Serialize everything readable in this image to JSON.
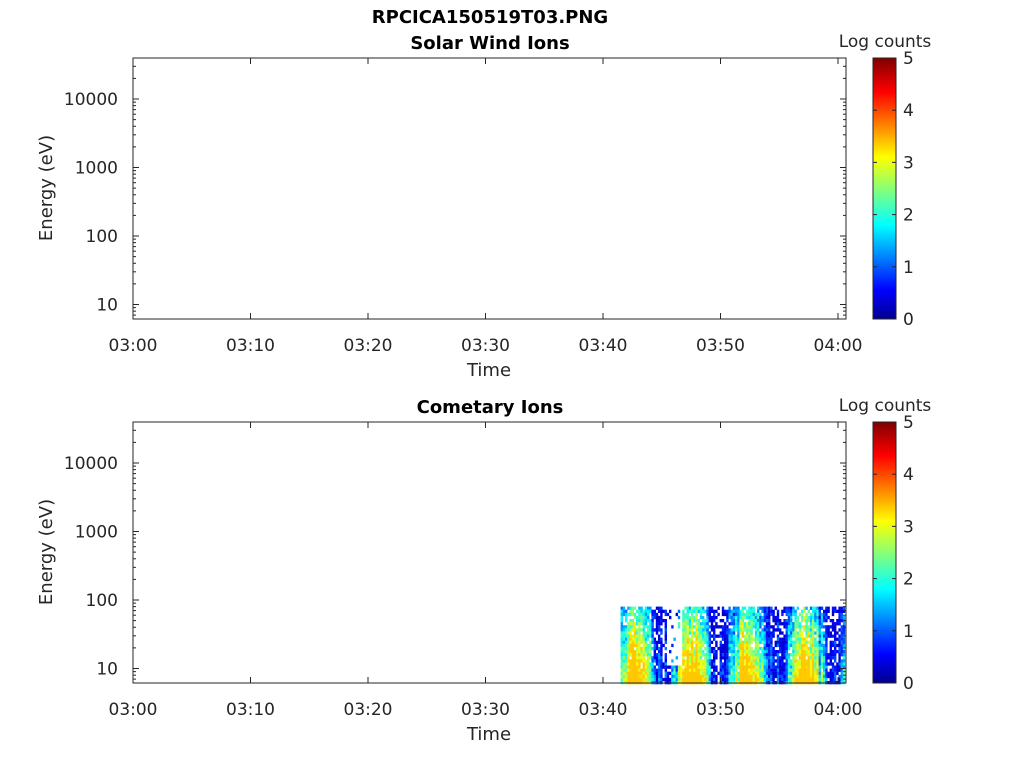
{
  "figure": {
    "title": "RPCICA150519T03.PNG"
  },
  "chart_data": [
    {
      "type": "heatmap",
      "title": "Solar Wind Ions",
      "xlabel": "Time",
      "ylabel": "Energy (eV)",
      "x_ticks": [
        "03:00",
        "03:10",
        "03:20",
        "03:30",
        "03:40",
        "03:50",
        "04:00"
      ],
      "y_ticks": [
        "10",
        "100",
        "1000",
        "10000"
      ],
      "y_scale": "log",
      "ylim": [
        6,
        40000
      ],
      "xlim_minutes": [
        0,
        60
      ],
      "colorbar": {
        "label": "Log counts",
        "ticks": [
          "0",
          "1",
          "2",
          "3",
          "4",
          "5"
        ],
        "range": [
          0,
          5
        ],
        "colormap": "jet"
      },
      "data_region": null
    },
    {
      "type": "heatmap",
      "title": "Cometary Ions",
      "xlabel": "Time",
      "ylabel": "Energy (eV)",
      "x_ticks": [
        "03:00",
        "03:10",
        "03:20",
        "03:30",
        "03:40",
        "03:50",
        "04:00"
      ],
      "y_ticks": [
        "10",
        "100",
        "1000",
        "10000"
      ],
      "y_scale": "log",
      "ylim": [
        6,
        40000
      ],
      "xlim_minutes": [
        0,
        60
      ],
      "colorbar": {
        "label": "Log counts",
        "ticks": [
          "0",
          "1",
          "2",
          "3",
          "4",
          "5"
        ],
        "range": [
          0,
          5
        ],
        "colormap": "jet"
      },
      "data_region": {
        "t_start_min": 41.5,
        "t_end_min": 60.5,
        "e_min": 6,
        "e_max": 80
      }
    }
  ]
}
